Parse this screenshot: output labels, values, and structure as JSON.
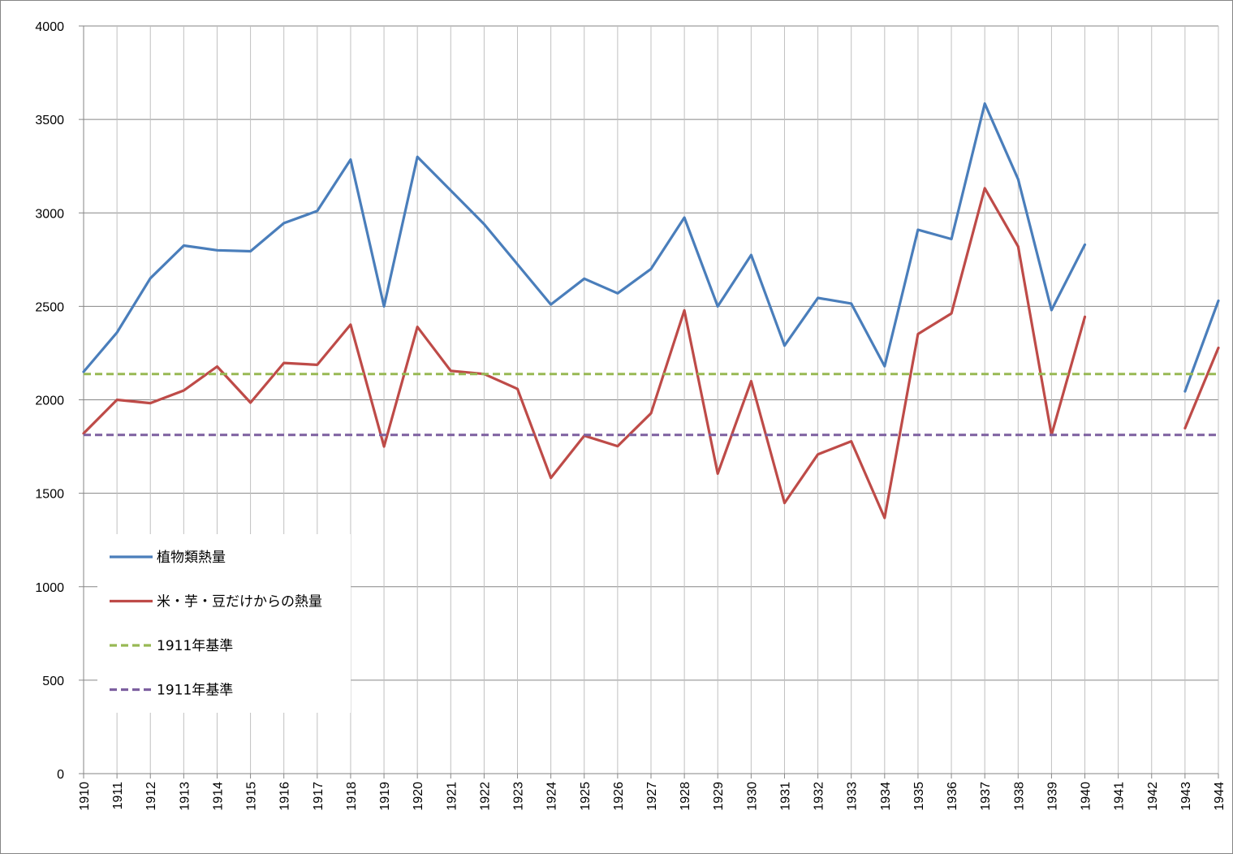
{
  "chart_data": {
    "type": "line",
    "title": "",
    "xlabel": "",
    "ylabel": "",
    "ylim": [
      0,
      4000
    ],
    "yticks": [
      0,
      500,
      1000,
      1500,
      2000,
      2500,
      3000,
      3500,
      4000
    ],
    "grid": true,
    "legend_position": "bottom-left",
    "categories": [
      "1910",
      "1911",
      "1912",
      "1913",
      "1914",
      "1915",
      "1916",
      "1917",
      "1918",
      "1919",
      "1920",
      "1921",
      "1922",
      "1923",
      "1924",
      "1925",
      "1926",
      "1927",
      "1928",
      "1929",
      "1930",
      "1931",
      "1932",
      "1933",
      "1934",
      "1935",
      "1936",
      "1937",
      "1938",
      "1939",
      "1940",
      "1941",
      "1942",
      "1943",
      "1944"
    ],
    "series": [
      {
        "name": "植物類熱量",
        "color": "#4a7ebb",
        "style": "solid",
        "values": [
          2150,
          2360,
          2650,
          2825,
          2800,
          2795,
          2945,
          3010,
          3285,
          2500,
          3300,
          3120,
          2940,
          2725,
          2510,
          2648,
          2570,
          2700,
          2975,
          2500,
          2775,
          2290,
          2545,
          2515,
          2180,
          2910,
          2860,
          3585,
          3180,
          2480,
          2830,
          null,
          null,
          2045,
          2530
        ]
      },
      {
        "name": "米・芋・豆だけからの熱量",
        "color": "#be4b48",
        "style": "solid",
        "values": [
          1820,
          2000,
          1982,
          2050,
          2178,
          1985,
          2197,
          2187,
          2402,
          1750,
          2390,
          2155,
          2138,
          2058,
          1582,
          1808,
          1752,
          1928,
          2478,
          1605,
          2100,
          1448,
          1708,
          1778,
          1368,
          2352,
          2462,
          3132,
          2820,
          1812,
          2444,
          null,
          null,
          1848,
          2278
        ]
      },
      {
        "name": "1911年基準",
        "color": "#98b954",
        "style": "dashed",
        "values": [
          2138,
          2138,
          2138,
          2138,
          2138,
          2138,
          2138,
          2138,
          2138,
          2138,
          2138,
          2138,
          2138,
          2138,
          2138,
          2138,
          2138,
          2138,
          2138,
          2138,
          2138,
          2138,
          2138,
          2138,
          2138,
          2138,
          2138,
          2138,
          2138,
          2138,
          2138,
          2138,
          2138,
          2138,
          2138
        ]
      },
      {
        "name": "1911年基準",
        "color": "#7d60a0",
        "style": "dashed",
        "values": [
          1812,
          1812,
          1812,
          1812,
          1812,
          1812,
          1812,
          1812,
          1812,
          1812,
          1812,
          1812,
          1812,
          1812,
          1812,
          1812,
          1812,
          1812,
          1812,
          1812,
          1812,
          1812,
          1812,
          1812,
          1812,
          1812,
          1812,
          1812,
          1812,
          1812,
          1812,
          1812,
          1812,
          1812,
          1812
        ]
      }
    ]
  }
}
